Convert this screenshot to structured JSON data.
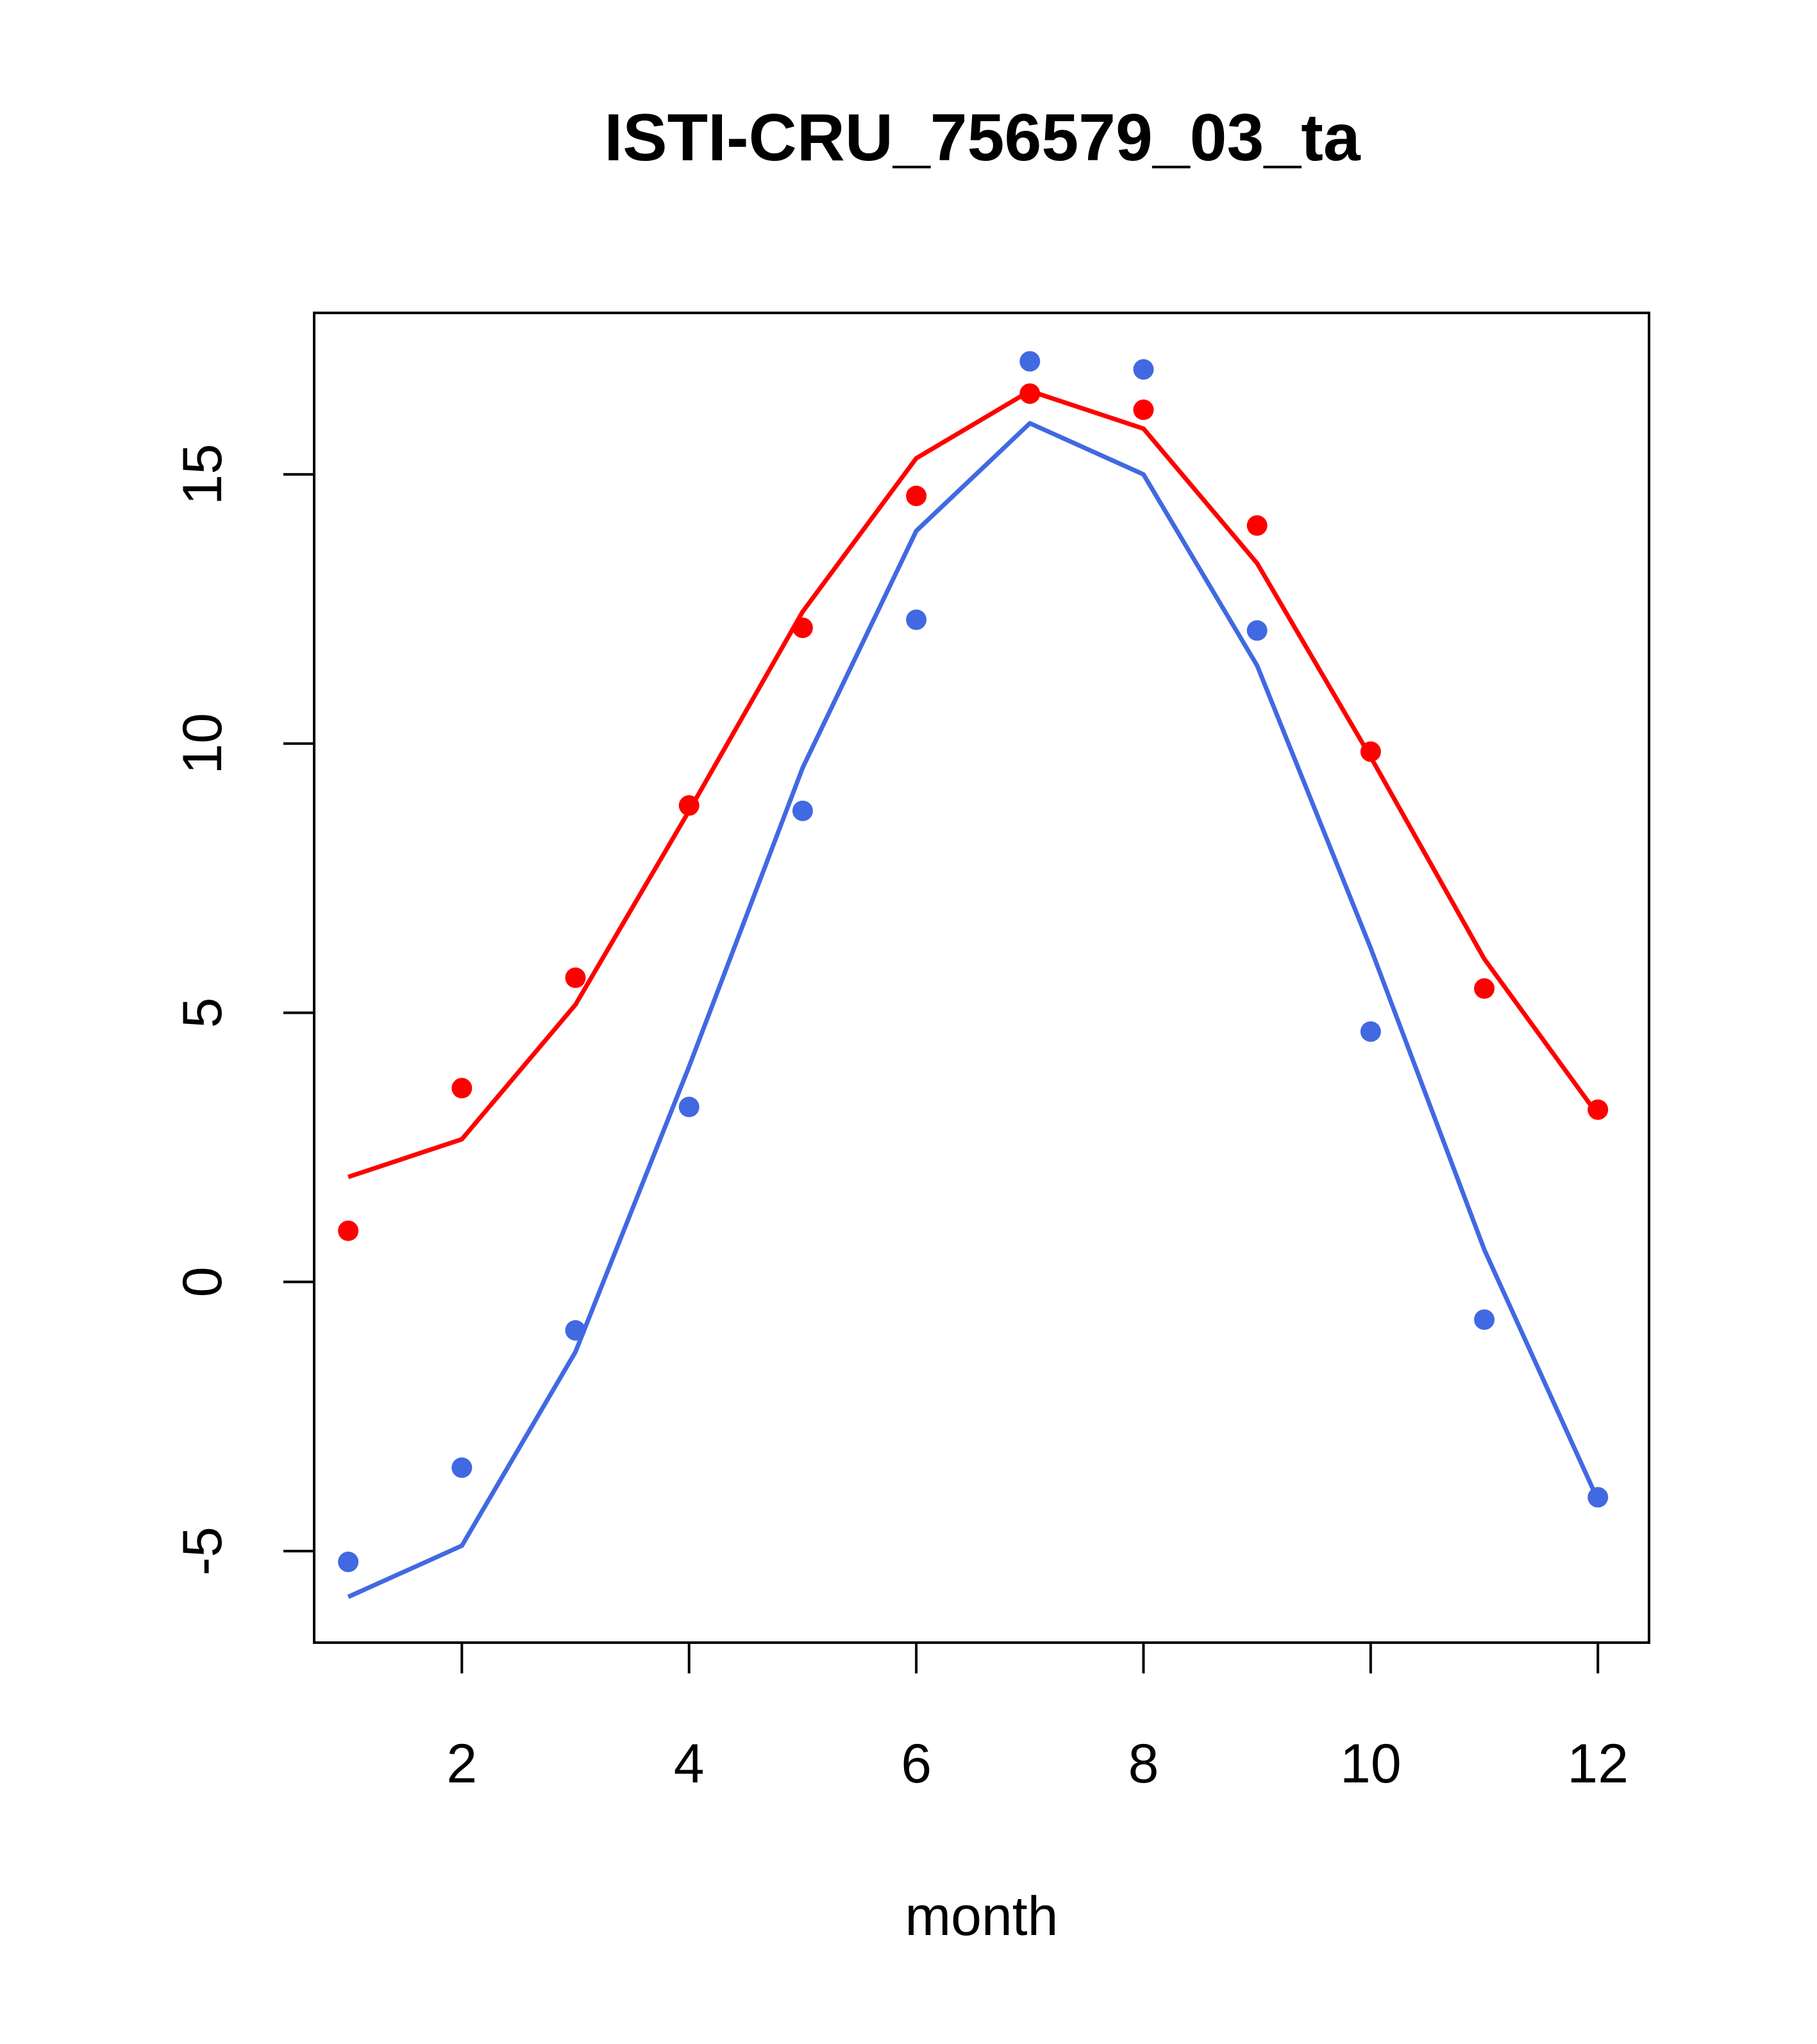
{
  "chart_data": {
    "type": "line",
    "title": "ISTI-CRU_756579_03_ta",
    "xlabel": "month",
    "ylabel": "",
    "xlim": [
      0.7,
      12.45
    ],
    "ylim": [
      -6.7,
      18.0
    ],
    "x_ticks": [
      2,
      4,
      6,
      8,
      10,
      12
    ],
    "y_ticks": [
      -5,
      0,
      5,
      10,
      15
    ],
    "x": [
      1,
      2,
      3,
      4,
      5,
      6,
      7,
      8,
      9,
      10,
      11,
      12
    ],
    "series": [
      {
        "color": "#ff0000",
        "line": [
          1.95,
          2.65,
          5.15,
          8.75,
          12.45,
          15.3,
          16.55,
          15.85,
          13.35,
          9.75,
          6.0,
          3.1
        ],
        "points": [
          0.95,
          3.6,
          5.65,
          8.85,
          12.15,
          14.6,
          16.5,
          16.2,
          14.05,
          9.85,
          5.45,
          3.2
        ]
      },
      {
        "color": "#4169e1",
        "line": [
          -5.85,
          -4.9,
          -1.3,
          4.0,
          9.55,
          13.95,
          15.95,
          15.0,
          11.45,
          6.2,
          0.6,
          -4.05
        ],
        "points": [
          -5.2,
          -3.45,
          -0.9,
          3.25,
          8.75,
          12.3,
          17.1,
          16.95,
          12.1,
          4.65,
          -0.7,
          -4.0
        ]
      }
    ]
  }
}
